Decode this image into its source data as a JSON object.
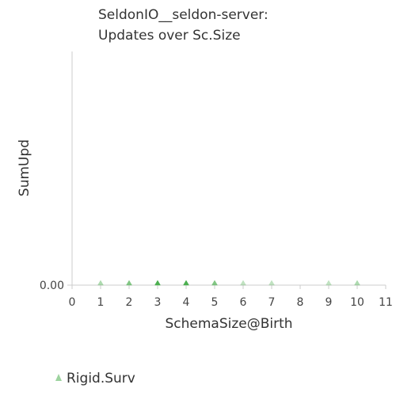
{
  "chart_data": {
    "type": "scatter",
    "title_lines": [
      "SeldonIO__seldon-server:",
      "Updates over Sc.Size"
    ],
    "xlabel": "SchemaSize@Birth",
    "ylabel": "SumUpd",
    "xlim": [
      0,
      11
    ],
    "x_ticks": [
      "0",
      "1",
      "2",
      "3",
      "4",
      "5",
      "6",
      "7",
      "8",
      "9",
      "10",
      "11"
    ],
    "y_ticks": [
      "0.00"
    ],
    "grid": false,
    "legend_placement": "bottom-left",
    "series": [
      {
        "name": "Rigid.Surv",
        "marker": "triangle",
        "color": "#4caf50",
        "points": [
          {
            "x": 1,
            "y": 0,
            "opacity": 0.45
          },
          {
            "x": 2,
            "y": 0,
            "opacity": 0.7
          },
          {
            "x": 3,
            "y": 0,
            "opacity": 1.0
          },
          {
            "x": 4,
            "y": 0,
            "opacity": 1.0
          },
          {
            "x": 5,
            "y": 0,
            "opacity": 0.7
          },
          {
            "x": 6,
            "y": 0,
            "opacity": 0.35
          },
          {
            "x": 7,
            "y": 0,
            "opacity": 0.35
          },
          {
            "x": 9,
            "y": 0,
            "opacity": 0.35
          },
          {
            "x": 10,
            "y": 0,
            "opacity": 0.45
          }
        ]
      }
    ]
  }
}
